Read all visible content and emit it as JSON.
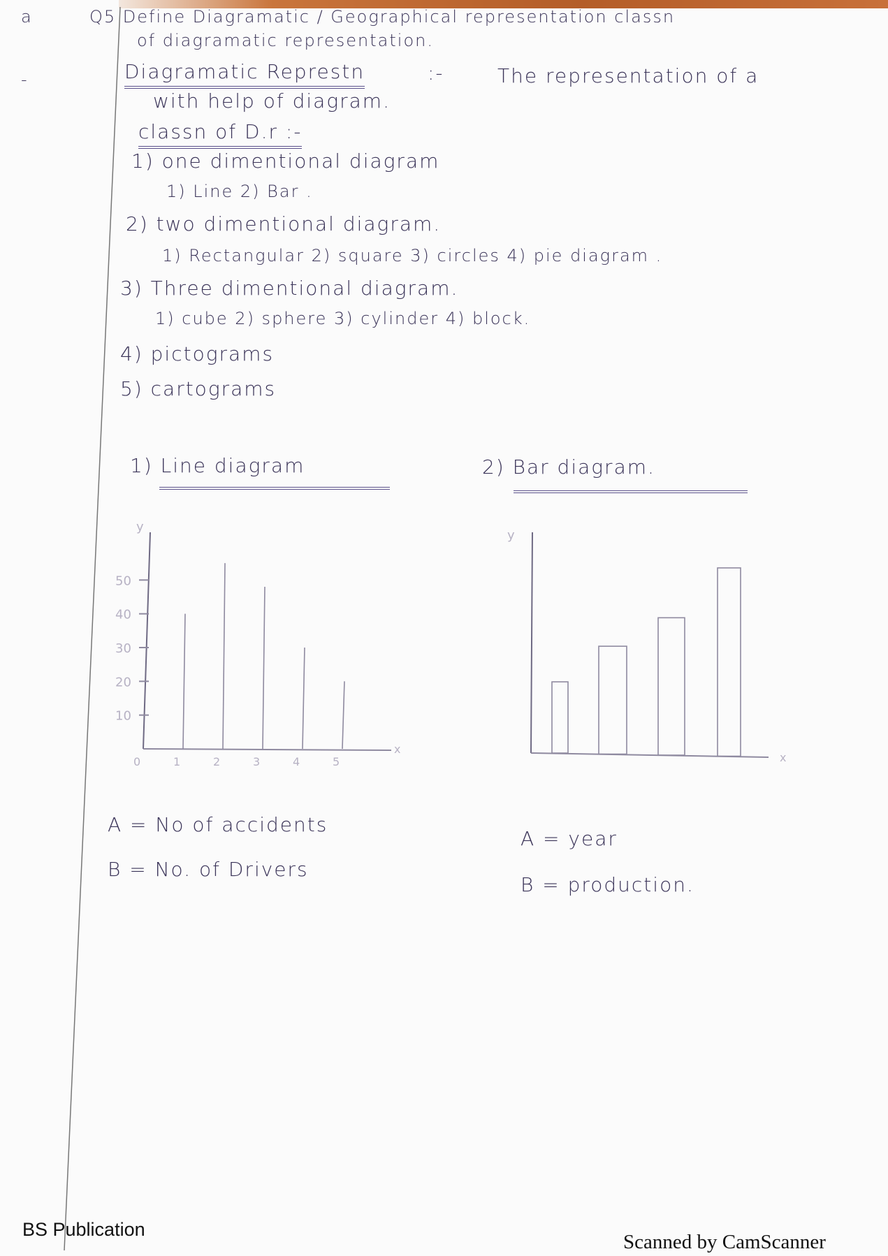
{
  "margin_marks": [
    "a",
    "-"
  ],
  "question": {
    "line1": "Q5 Define Diagramatic / Geographical representation classn",
    "line2": "of diagramatic representation."
  },
  "definition": {
    "term": "Diagramatic Represtn",
    "sep": ":-",
    "text1": "The representation of a",
    "text2": "with help of diagram."
  },
  "classification": {
    "heading": "classn of D.r :-",
    "items": [
      {
        "label": "1) one dimentional diagram",
        "sub": "1) Line     2) Bar ."
      },
      {
        "label": "2) two dimentional diagram.",
        "sub": "1) Rectangular  2) square  3) circles  4) pie diagram ."
      },
      {
        "label": "3) Three dimentional diagram.",
        "sub": "1) cube    2) sphere   3) cylinder  4) block."
      },
      {
        "label": "4) pictograms",
        "sub": ""
      },
      {
        "label": "5) cartograms",
        "sub": ""
      }
    ]
  },
  "diagrams": {
    "line_title": "1) Line diagram",
    "bar_title": "2) Bar diagram."
  },
  "chart_data": [
    {
      "type": "bar",
      "subtype": "line-diagram",
      "title": "Line diagram",
      "xlabel": "x",
      "ylabel": "y",
      "x_ticks": [
        "0",
        "1",
        "2",
        "3",
        "4",
        "5"
      ],
      "y_ticks": [
        "10",
        "20",
        "30",
        "40",
        "50"
      ],
      "categories": [
        1,
        2,
        3,
        4,
        5
      ],
      "values": [
        40,
        55,
        48,
        30,
        20
      ],
      "ylim": [
        0,
        60
      ],
      "legend": {
        "A": "No of accidents",
        "B": "No. of Drivers"
      }
    },
    {
      "type": "bar",
      "title": "Bar diagram",
      "xlabel": "x",
      "ylabel": "y",
      "values": [
        10,
        15,
        19,
        26
      ],
      "ylim": [
        0,
        31
      ],
      "legend": {
        "A": "year",
        "B": "production."
      }
    }
  ],
  "legend_line": {
    "a": "A = No of accidents",
    "b": "B = No. of Drivers"
  },
  "legend_bar": {
    "a": "A = year",
    "b": "B = production."
  },
  "footer": {
    "left": "BS Publication",
    "right": "Scanned by CamScanner"
  },
  "colors": {
    "ink": "#3a3358",
    "pencil": "#9a94ad",
    "wood": "#b45d28"
  }
}
